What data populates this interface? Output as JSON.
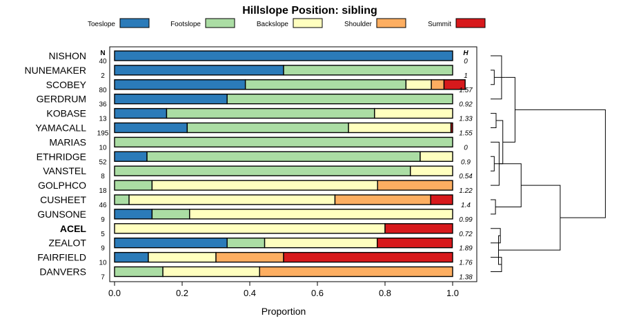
{
  "chart_data": {
    "type": "bar",
    "orientation": "horizontal",
    "stacked": true,
    "title": "Hillslope Position: sibling",
    "xlabel": "Proportion",
    "ylabel": "",
    "xlim": [
      0,
      1
    ],
    "xticks": [
      "0.0",
      "0.2",
      "0.4",
      "0.6",
      "0.8",
      "1.0"
    ],
    "legend": {
      "position": "top",
      "entries": [
        {
          "name": "Toeslope",
          "color": "#2b7bb9"
        },
        {
          "name": "Footslope",
          "color": "#abdda4"
        },
        {
          "name": "Backslope",
          "color": "#ffffbf"
        },
        {
          "name": "Shoulder",
          "color": "#fdae61"
        },
        {
          "name": "Summit",
          "color": "#d7191c"
        }
      ]
    },
    "n_header": "N",
    "h_header": "H",
    "highlight": "ACEL",
    "categories": [
      "NISHON",
      "NUNEMAKER",
      "SCOBEY",
      "GERDRUM",
      "KOBASE",
      "YAMACALL",
      "MARIAS",
      "ETHRIDGE",
      "VANSTEL",
      "GOLPHCO",
      "CUSHEET",
      "GUNSONE",
      "ACEL",
      "ZEALOT",
      "FAIRFIELD",
      "DANVERS"
    ],
    "n": [
      "40",
      "2",
      "80",
      "36",
      "13",
      "195",
      "10",
      "52",
      "8",
      "18",
      "46",
      "9",
      "5",
      "9",
      "10",
      "7"
    ],
    "h": [
      "0",
      "1",
      "1.57",
      "0.92",
      "1.33",
      "1.55",
      "0",
      "0.9",
      "0.54",
      "1.22",
      "1.4",
      "0.99",
      "0.72",
      "1.89",
      "1.76",
      "1.38"
    ],
    "series": [
      {
        "name": "Toeslope",
        "values": [
          1.0,
          0.5,
          0.387,
          0.333,
          0.154,
          0.215,
          0,
          0.096,
          0,
          0,
          0,
          0.111,
          0,
          0.333,
          0.1,
          0
        ]
      },
      {
        "name": "Footslope",
        "values": [
          0,
          0.5,
          0.475,
          0.667,
          0.615,
          0.477,
          1.0,
          0.808,
          0.875,
          0.111,
          0.043,
          0.111,
          0,
          0.111,
          0,
          0.143
        ]
      },
      {
        "name": "Backslope",
        "values": [
          0,
          0,
          0.075,
          0,
          0.231,
          0.303,
          0,
          0.096,
          0.125,
          0.667,
          0.609,
          0.778,
          0.8,
          0.333,
          0.2,
          0.286
        ]
      },
      {
        "name": "Shoulder",
        "values": [
          0,
          0,
          0.0375,
          0,
          0,
          0,
          0,
          0,
          0,
          0.222,
          0.283,
          0,
          0,
          0,
          0.2,
          0.571
        ]
      },
      {
        "name": "Summit",
        "values": [
          0,
          0,
          0.0625,
          0,
          0,
          0.005,
          0,
          0,
          0,
          0,
          0.065,
          0,
          0.2,
          0.222,
          0.5,
          0
        ]
      }
    ],
    "dendrogram": {
      "merges": [
        [
          1,
          2
        ],
        [
          0,
          3
        ],
        [
          4,
          5
        ],
        [
          7,
          8
        ],
        [
          6,
          9
        ],
        [
          10,
          11
        ],
        [
          12,
          13
        ],
        [
          14,
          15
        ],
        [
          16,
          17
        ],
        [
          18,
          19
        ],
        [
          20,
          21
        ],
        [
          22,
          23
        ],
        [
          24,
          25
        ],
        [
          26,
          27
        ],
        [
          28,
          29
        ]
      ],
      "heights": [
        0.03,
        0.09,
        0.045,
        0.03,
        0.07,
        0.04,
        0.08,
        0.09,
        0.12,
        0.1,
        0.25,
        0.065,
        0.2,
        0.57,
        0.94
      ]
    }
  }
}
